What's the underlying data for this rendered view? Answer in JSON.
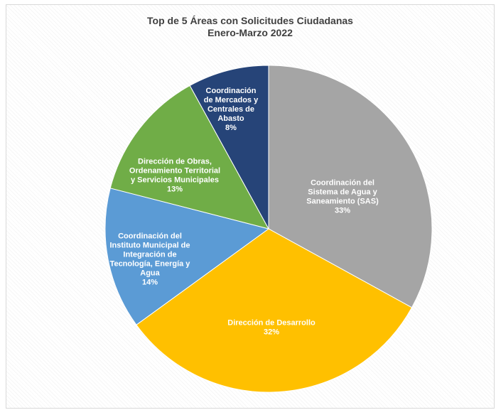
{
  "chart_data": {
    "type": "pie",
    "title": "Top de 5 Áreas con Solicitudes Ciudadanas",
    "subtitle": "Enero-Marzo 2022",
    "slices": [
      {
        "label": "Coordinación del Sistema de Agua y Saneamiento (SAS)",
        "label_lines": [
          "Coordinación del",
          "Sistema de Agua y",
          "Saneamiento (SAS)"
        ],
        "value": 33,
        "value_label": "33%",
        "color": "#a5a5a5"
      },
      {
        "label": "Dirección de Desarrollo",
        "label_lines": [
          "Dirección de Desarrollo"
        ],
        "value": 32,
        "value_label": "32%",
        "color": "#ffc000"
      },
      {
        "label": "Coordinación del Instituto Municipal de Integración de Tecnología, Energía y Agua",
        "label_lines": [
          "Coordinación del",
          "Instituto Municipal de",
          "Integración de",
          "Tecnología, Energía y",
          "Agua"
        ],
        "value": 14,
        "value_label": "14%",
        "color": "#5b9bd5"
      },
      {
        "label": "Dirección de Obras, Ordenamiento Territorial y Servicios Municipales",
        "label_lines": [
          "Dirección de Obras,",
          "Ordenamiento Territorial",
          "y Servicios Municipales"
        ],
        "value": 13,
        "value_label": "13%",
        "color": "#70ad47"
      },
      {
        "label": "Coordinación de Mercados y Centrales de Abasto",
        "label_lines": [
          "Coordinación",
          "de Mercados y",
          "Centrales de",
          "Abasto"
        ],
        "value": 8,
        "value_label": "8%",
        "color": "#264478"
      }
    ]
  }
}
